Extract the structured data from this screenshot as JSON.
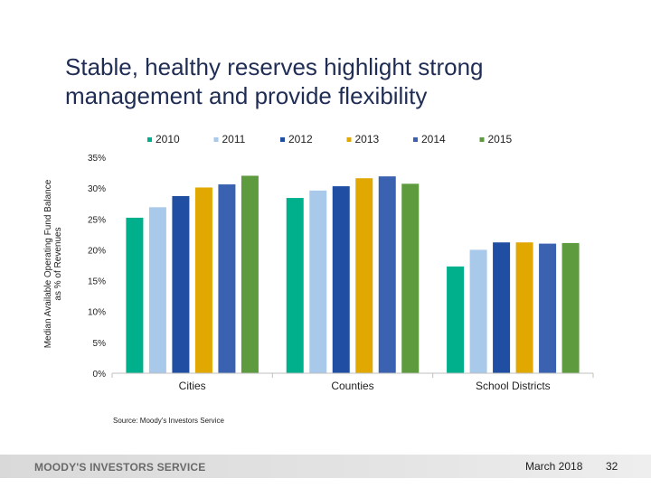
{
  "slide": {
    "title": "Stable, healthy reserves highlight strong management and provide flexibility",
    "source": "Source: Moody's Investors Service"
  },
  "footer": {
    "brand": "MOODY'S INVESTORS SERVICE",
    "date": "March 2018",
    "page_number": "32"
  },
  "chart_data": {
    "type": "bar",
    "categories": [
      "Cities",
      "Counties",
      "School Districts"
    ],
    "ylabel": "Median Available Operating Fund Balance as % of Revenues",
    "ylim": [
      0,
      35
    ],
    "yticks": [
      "0%",
      "5%",
      "10%",
      "15%",
      "20%",
      "25%",
      "30%",
      "35%"
    ],
    "grid": false,
    "legend_position": "top",
    "series": [
      {
        "name": "2010",
        "color": "#00b08c",
        "values": [
          25.2,
          28.4,
          17.3
        ]
      },
      {
        "name": "2011",
        "color": "#a8c9ea",
        "values": [
          26.9,
          29.6,
          20.0
        ]
      },
      {
        "name": "2012",
        "color": "#1f4ea3",
        "values": [
          28.7,
          30.3,
          21.2
        ]
      },
      {
        "name": "2013",
        "color": "#e0a800",
        "values": [
          30.1,
          31.6,
          21.2
        ]
      },
      {
        "name": "2014",
        "color": "#3a62b0",
        "values": [
          30.6,
          31.9,
          21.0
        ]
      },
      {
        "name": "2015",
        "color": "#5e9a3e",
        "values": [
          32.0,
          30.7,
          21.1
        ]
      }
    ]
  }
}
